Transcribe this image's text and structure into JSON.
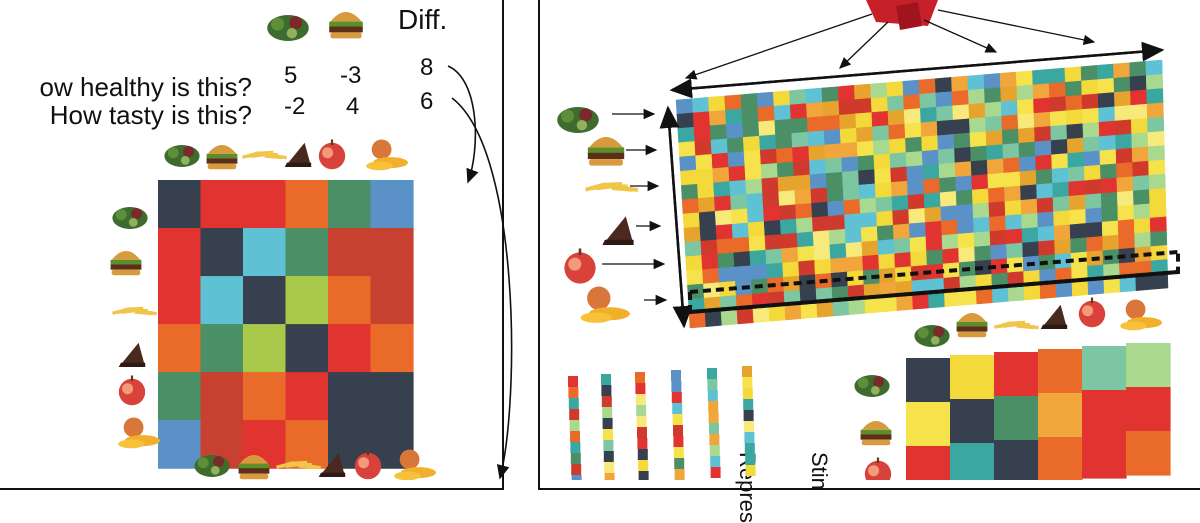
{
  "left_panel": {
    "diff_label": "Diff.",
    "questions": [
      "ow healthy is this?",
      "How tasty is this?"
    ],
    "ratings": [
      {
        "salad": "5",
        "burger": "-3",
        "diff": "8"
      },
      {
        "salad": "-2",
        "burger": "4",
        "diff": "6"
      }
    ],
    "foods": [
      "salad",
      "burger",
      "fries",
      "cake",
      "apple",
      "mango"
    ],
    "rdm": [
      [
        "#36404e",
        "#e13430",
        "#e13430",
        "#e96a29",
        "#4b8f67",
        "#5a92c8"
      ],
      [
        "#e13430",
        "#36404e",
        "#5fc1d4",
        "#4b8f67",
        "#c8402f",
        "#c8402f"
      ],
      [
        "#e13430",
        "#5fc1d4",
        "#36404e",
        "#a9c94a",
        "#e96a29",
        "#c8402f"
      ],
      [
        "#e96a29",
        "#4b8f67",
        "#a9c94a",
        "#36404e",
        "#e13430",
        "#e96a29"
      ],
      [
        "#4b8f67",
        "#c8402f",
        "#e96a29",
        "#e13430",
        "#36404e",
        "#36404e"
      ],
      [
        "#5a92c8",
        "#c8402f",
        "#e13430",
        "#e96a29",
        "#36404e",
        "#36404e"
      ]
    ]
  },
  "right_panel": {
    "foods": [
      "salad",
      "burger",
      "fries",
      "cake",
      "apple",
      "mango"
    ],
    "palette": [
      "#f6e34b",
      "#f4d93a",
      "#f0a63a",
      "#e96a29",
      "#e13430",
      "#cf3a2c",
      "#4b8f67",
      "#5a92c8",
      "#5fc1d4",
      "#a9d88f",
      "#36404e",
      "#e6a42e",
      "#f7ea7a",
      "#7cc6a2",
      "#3aa7a0"
    ],
    "vertical_text_1": "Repres",
    "vertical_text_2": "Stin",
    "rdm_small": [
      [
        "#36404e",
        "#f4d93a",
        "#e13430",
        "#e96a29",
        "#7cc6a2",
        "#a9d88f"
      ],
      [
        "#f6e34b",
        "#36404e",
        "#4b8f67",
        "#f0a63a",
        "#e13430",
        "#e13430"
      ],
      [
        "#e13430",
        "#3aa7a0",
        "#36404e",
        "#e96a29",
        "#e13430",
        "#e96a29"
      ]
    ]
  },
  "colors": {
    "ink": "#111111",
    "background": "#ffffff",
    "cube": "#c8202a"
  }
}
